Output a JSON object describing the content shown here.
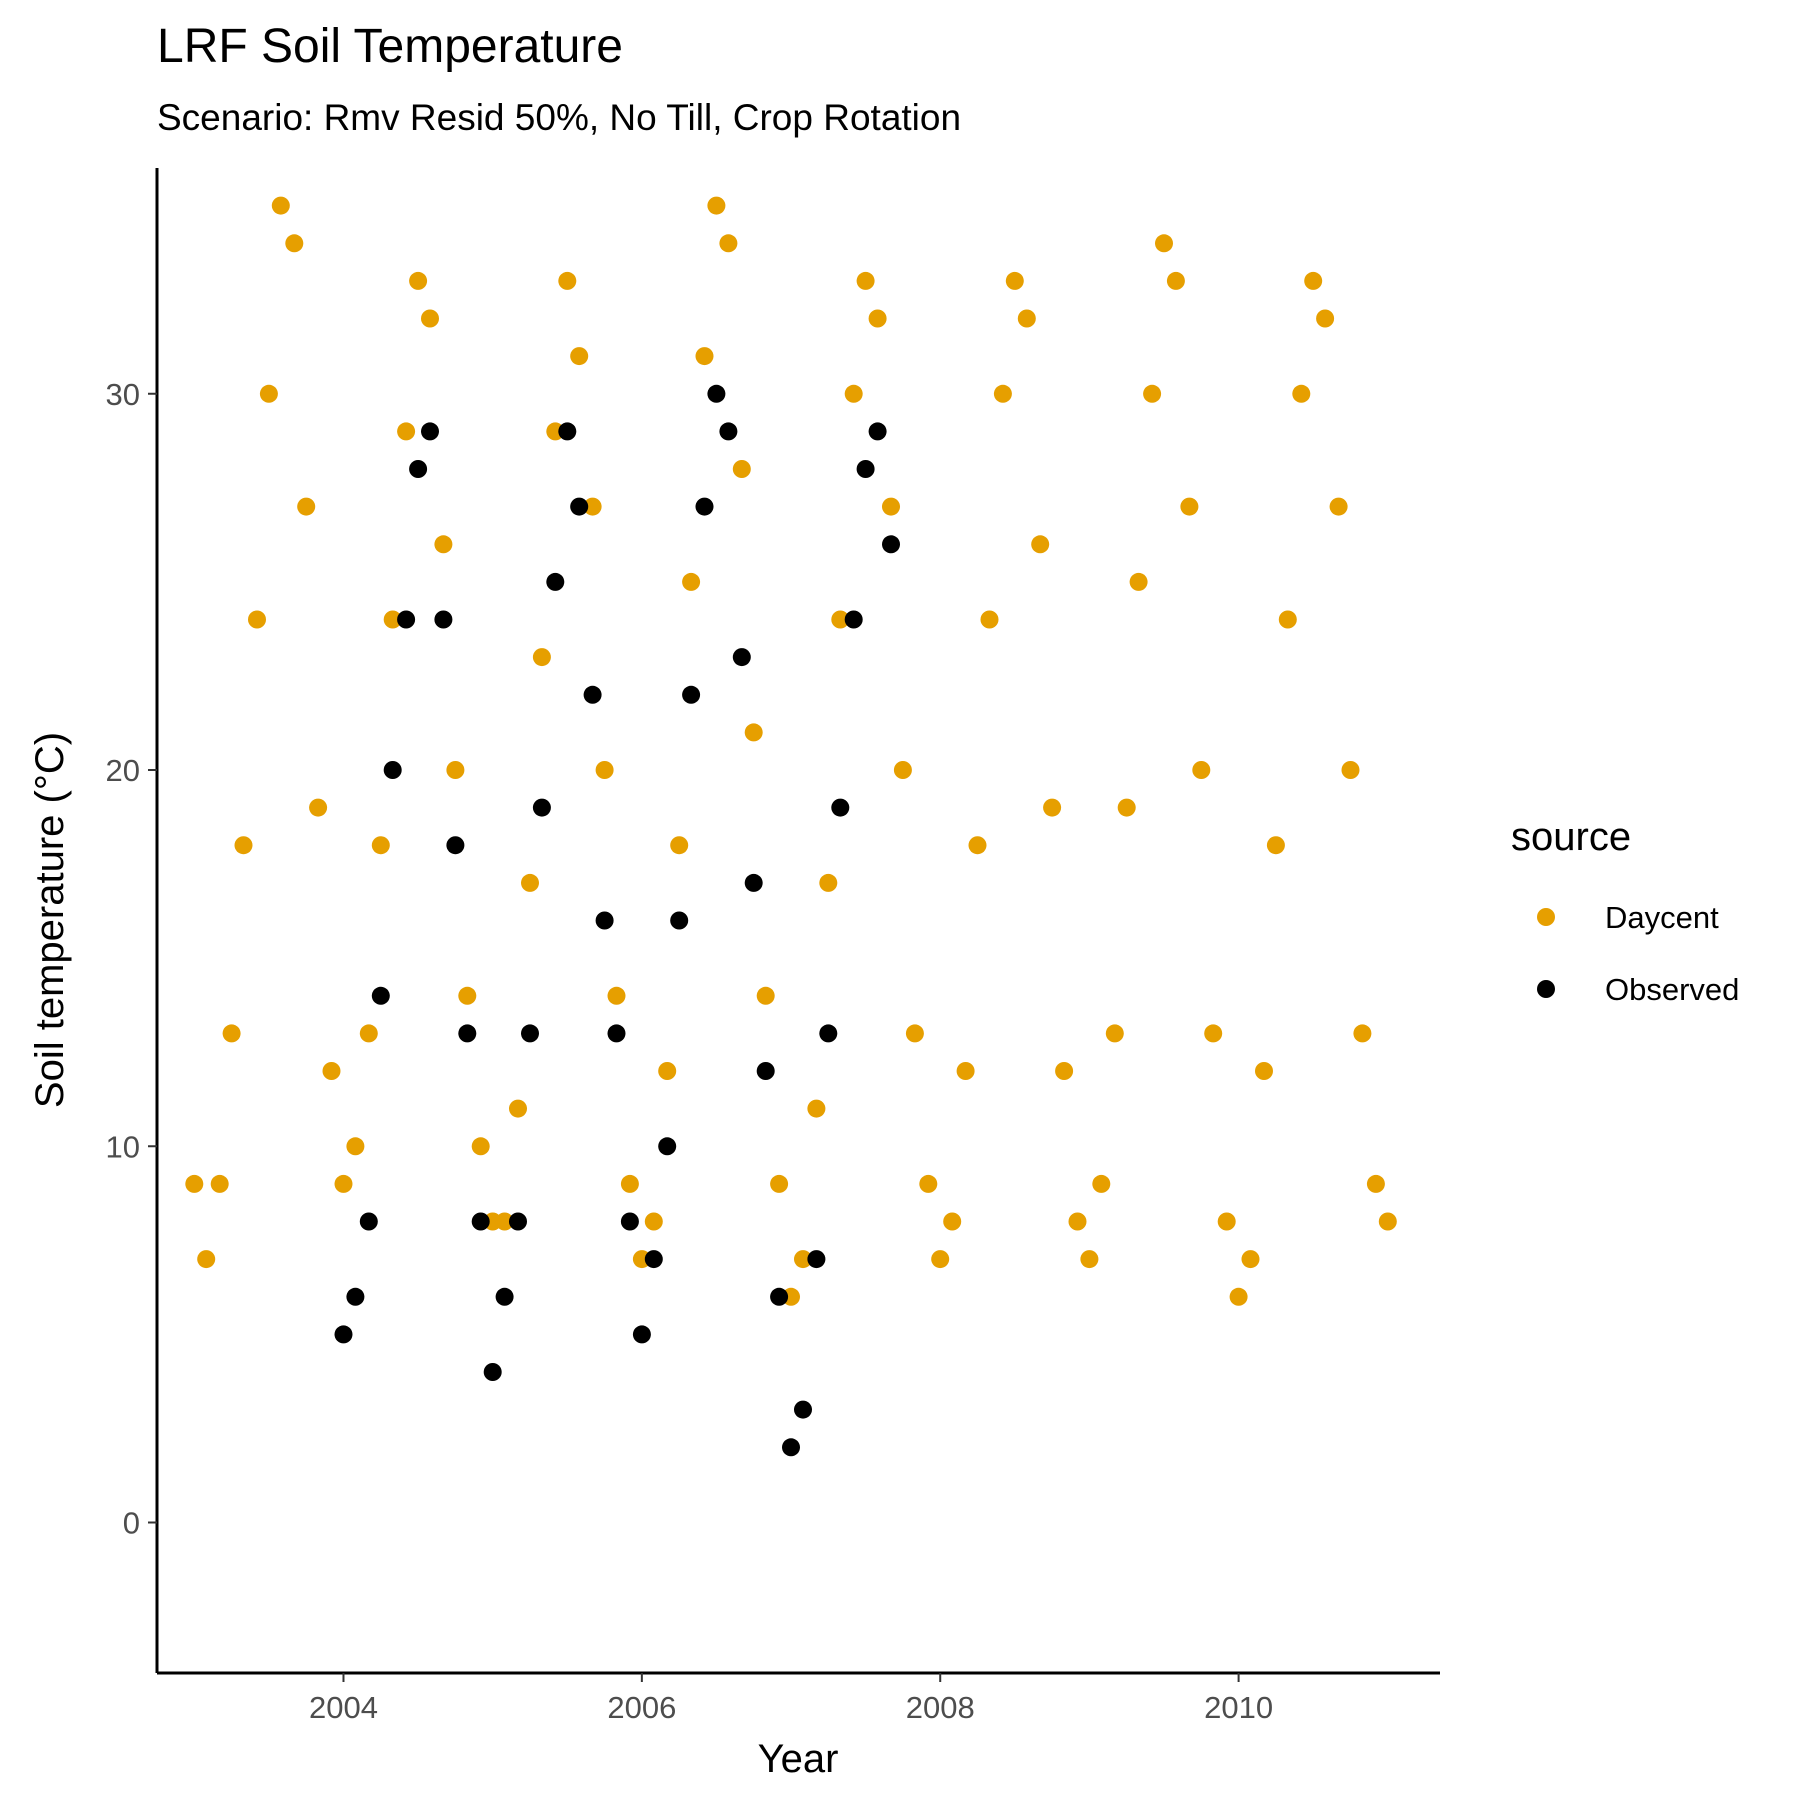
{
  "chart_data": {
    "type": "scatter",
    "title": "LRF Soil Temperature",
    "subtitle": "Scenario: Rmv Resid 50%, No Till, Crop Rotation",
    "xlabel": "Year",
    "ylabel": "Soil temperature (°C)",
    "xlim": [
      2002.75,
      2011.35
    ],
    "ylim": [
      -4,
      36
    ],
    "x_ticks": [
      2004,
      2006,
      2008,
      2010
    ],
    "x_tick_labels": [
      "2004",
      "2006",
      "2008",
      "2010"
    ],
    "y_ticks": [
      0,
      10,
      20,
      30
    ],
    "y_tick_labels": [
      "0",
      "10",
      "20",
      "30"
    ],
    "grid": false,
    "legend": {
      "title": "source",
      "placement": "right",
      "entries": [
        {
          "label": "Daycent",
          "color": "#E69F00"
        },
        {
          "label": "Observed",
          "color": "#000000"
        }
      ]
    },
    "series": [
      {
        "name": "Daycent",
        "color": "#E69F00",
        "x": [
          2003.0,
          2003.08,
          2003.17,
          2003.25,
          2003.33,
          2003.42,
          2003.5,
          2003.58,
          2003.67,
          2003.75,
          2003.83,
          2003.92,
          2004.0,
          2004.08,
          2004.17,
          2004.25,
          2004.33,
          2004.42,
          2004.5,
          2004.58,
          2004.67,
          2004.75,
          2004.83,
          2004.92,
          2005.0,
          2005.08,
          2005.17,
          2005.25,
          2005.33,
          2005.42,
          2005.5,
          2005.58,
          2005.67,
          2005.75,
          2005.83,
          2005.92,
          2006.0,
          2006.08,
          2006.17,
          2006.25,
          2006.33,
          2006.42,
          2006.5,
          2006.58,
          2006.67,
          2006.75,
          2006.83,
          2006.92,
          2007.0,
          2007.08,
          2007.17,
          2007.25,
          2007.33,
          2007.42,
          2007.5,
          2007.58,
          2007.67,
          2007.75,
          2007.83,
          2007.92,
          2008.0,
          2008.08,
          2008.17,
          2008.25,
          2008.33,
          2008.42,
          2008.5,
          2008.58,
          2008.67,
          2008.75,
          2008.83,
          2008.92,
          2009.0,
          2009.08,
          2009.17,
          2009.25,
          2009.33,
          2009.42,
          2009.5,
          2009.58,
          2009.67,
          2009.75,
          2009.83,
          2009.92,
          2010.0,
          2010.08,
          2010.17,
          2010.25,
          2010.33,
          2010.42,
          2010.5,
          2010.58,
          2010.67,
          2010.75,
          2010.83,
          2010.92,
          2011.0
        ],
        "y": [
          9,
          7,
          9,
          13,
          18,
          24,
          30,
          35,
          34,
          27,
          19,
          12,
          9,
          10,
          13,
          18,
          24,
          29,
          33,
          32,
          26,
          20,
          14,
          10,
          8,
          8,
          11,
          17,
          23,
          29,
          33,
          31,
          27,
          20,
          14,
          9,
          7,
          8,
          12,
          18,
          25,
          31,
          35,
          34,
          28,
          21,
          14,
          9,
          6,
          7,
          11,
          17,
          24,
          30,
          33,
          32,
          27,
          20,
          13,
          9,
          7,
          8,
          12,
          18,
          24,
          30,
          33,
          32,
          26,
          19,
          12,
          8,
          7,
          9,
          13,
          19,
          25,
          30,
          34,
          33,
          27,
          20,
          13,
          8,
          6,
          7,
          12,
          18,
          24,
          30,
          33,
          32,
          27,
          20,
          13,
          9,
          8
        ]
      },
      {
        "name": "Observed",
        "color": "#000000",
        "x": [
          2004.0,
          2004.08,
          2004.17,
          2004.25,
          2004.33,
          2004.42,
          2004.5,
          2004.58,
          2004.67,
          2004.75,
          2004.83,
          2004.92,
          2005.0,
          2005.08,
          2005.17,
          2005.25,
          2005.33,
          2005.42,
          2005.5,
          2005.58,
          2005.67,
          2005.75,
          2005.83,
          2005.92,
          2006.0,
          2006.08,
          2006.17,
          2006.25,
          2006.33,
          2006.42,
          2006.5,
          2006.58,
          2006.67,
          2006.75,
          2006.83,
          2006.92,
          2007.0,
          2007.08,
          2007.17,
          2007.25,
          2007.33,
          2007.42,
          2007.5,
          2007.58,
          2007.67
        ],
        "y": [
          5,
          6,
          8,
          14,
          20,
          24,
          28,
          29,
          24,
          18,
          13,
          8,
          4,
          6,
          8,
          13,
          19,
          25,
          29,
          27,
          22,
          16,
          13,
          8,
          5,
          7,
          10,
          16,
          22,
          27,
          30,
          29,
          23,
          17,
          12,
          6,
          2,
          3,
          7,
          13,
          19,
          24,
          28,
          29,
          26
        ]
      }
    ]
  }
}
